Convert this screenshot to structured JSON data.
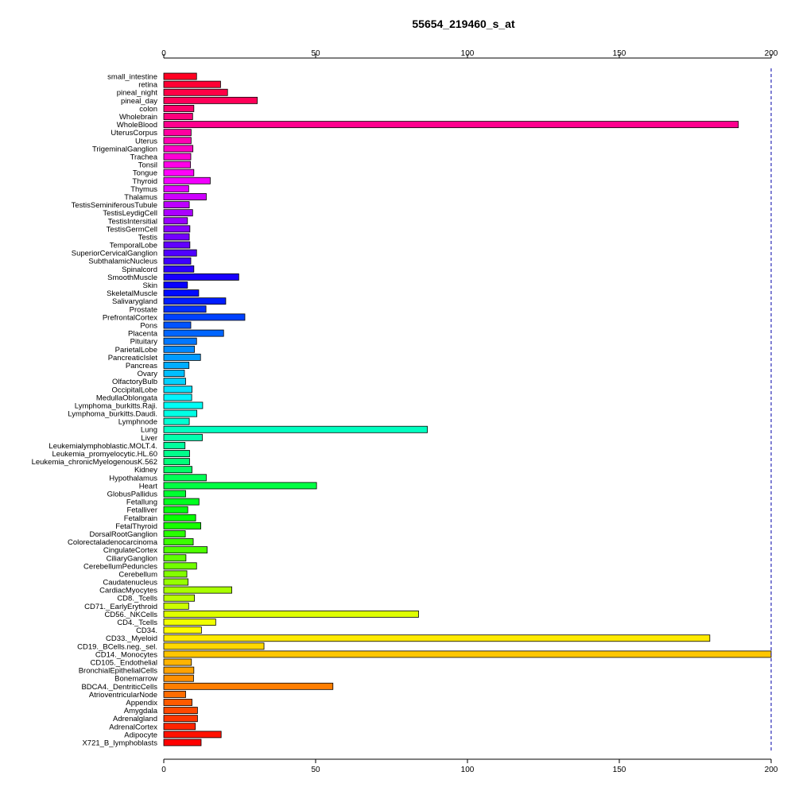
{
  "chart_data": {
    "type": "bar",
    "orientation": "horizontal",
    "title": "55654_219460_s_at",
    "xlabel": "",
    "ylabel": "",
    "xlim": [
      0,
      200
    ],
    "x_ticks": [
      0,
      50,
      100,
      150,
      200
    ],
    "reference_line": 200,
    "grid": false,
    "categories": [
      "small_intestine",
      "retina",
      "pineal_night",
      "pineal_day",
      "colon",
      "Wholebrain",
      "WholeBlood",
      "UterusCorpus",
      "Uterus",
      "TrigeminalGanglion",
      "Trachea",
      "Tonsil",
      "Tongue",
      "Thyroid",
      "Thymus",
      "Thalamus",
      "TestisSeminiferousTubule",
      "TestisLeydigCell",
      "TestisIntersitial",
      "TestisGermCell",
      "Testis",
      "TemporalLobe",
      "SuperiorCervicalGanglion",
      "SubthalamicNucleus",
      "Spinalcord",
      "SmoothMuscle",
      "Skin",
      "SkeletalMuscle",
      "Salivarygland",
      "Prostate",
      "PrefrontalCortex",
      "Pons",
      "Placenta",
      "Pituitary",
      "ParietalLobe",
      "PancreaticIslet",
      "Pancreas",
      "Ovary",
      "OlfactoryBulb",
      "OccipitalLobe",
      "MedullaOblongata",
      "Lymphoma_burkitts.Raji.",
      "Lymphoma_burkitts.Daudi.",
      "Lymphnode",
      "Lung",
      "Liver",
      "Leukemialymphoblastic.MOLT.4.",
      "Leukemia_promyelocytic.HL.60",
      "Leukemia_chronicMyelogenousK.562",
      "Kidney",
      "Hypothalamus",
      "Heart",
      "GlobusPallidus",
      "Fetallung",
      "Fetalliver",
      "Fetalbrain",
      "FetalThyroid",
      "DorsalRootGanglion",
      "Colorectaladenocarcinoma",
      "CingulateCortex",
      "CiliaryGanglion",
      "CerebellumPeduncles",
      "Cerebellum",
      "Caudatenucleus",
      "CardiacMyocytes",
      "CD8._Tcells",
      "CD71._EarlyErythroid",
      "CD56._NKCells",
      "CD4._Tcells",
      "CD34.",
      "CD33._Myeloid",
      "CD19._BCells.neg._sel.",
      "CD14._Monocytes",
      "CD105._Endothelial",
      "BronchialEpithelialCells",
      "Bonemarrow",
      "BDCA4._DentriticCells",
      "AtrioventricularNode",
      "Appendix",
      "Amygdala",
      "Adrenalgland",
      "AdrenalCortex",
      "Adipocyte",
      "X721_B_lymphoblasts"
    ],
    "values": [
      10.8,
      18.7,
      21.0,
      30.8,
      9.9,
      9.5,
      189.2,
      9.0,
      9.0,
      9.6,
      8.9,
      8.8,
      9.9,
      15.3,
      8.2,
      14.0,
      8.4,
      9.5,
      7.8,
      8.6,
      8.4,
      8.6,
      10.8,
      8.9,
      9.9,
      24.7,
      7.8,
      11.5,
      20.4,
      13.9,
      26.7,
      8.9,
      19.7,
      10.8,
      10.1,
      12.1,
      8.3,
      6.8,
      7.2,
      9.3,
      9.2,
      12.8,
      10.9,
      8.4,
      86.8,
      12.7,
      7.0,
      8.5,
      8.5,
      9.3,
      14.0,
      50.3,
      7.2,
      11.6,
      7.9,
      10.5,
      12.2,
      7.1,
      9.7,
      14.3,
      7.3,
      10.8,
      7.6,
      8.0,
      22.4,
      10.1,
      8.2,
      83.9,
      17.1,
      12.4,
      179.8,
      33.0,
      200.0,
      9.1,
      9.9,
      9.8,
      55.7,
      7.2,
      9.3,
      11.1,
      11.1,
      10.4,
      18.9,
      12.3
    ]
  }
}
